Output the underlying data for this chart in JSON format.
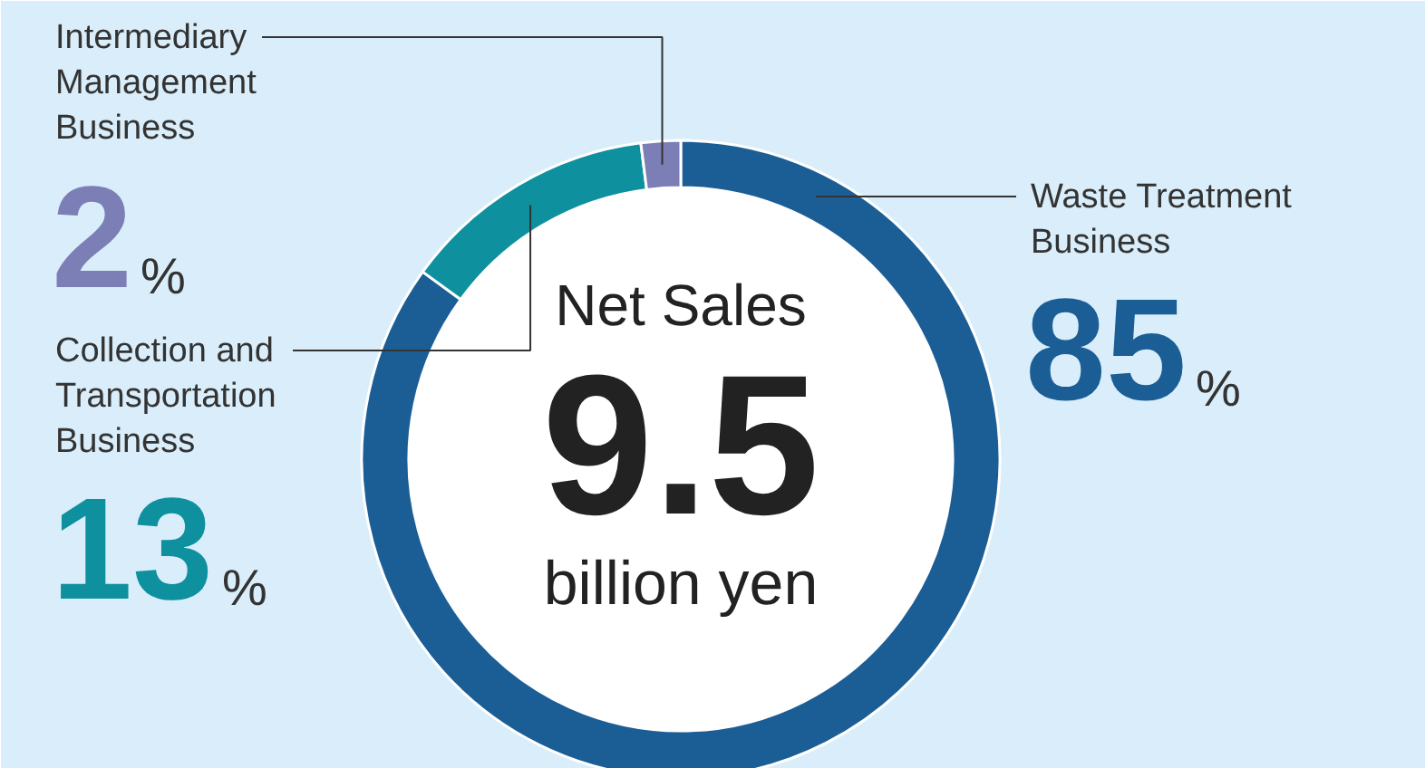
{
  "chart_data": {
    "type": "donut",
    "categories": [
      "Waste Treatment Business",
      "Collection and Transportation Business",
      "Intermediary Management Business"
    ],
    "values": [
      85,
      13,
      2
    ],
    "colors": [
      "#1b5e96",
      "#0f909f",
      "#7b7fb6"
    ],
    "value_labels": [
      "85%",
      "13%",
      "2%"
    ],
    "annotations": [
      "Net Sales",
      "9.5",
      "billion yen"
    ]
  }
}
